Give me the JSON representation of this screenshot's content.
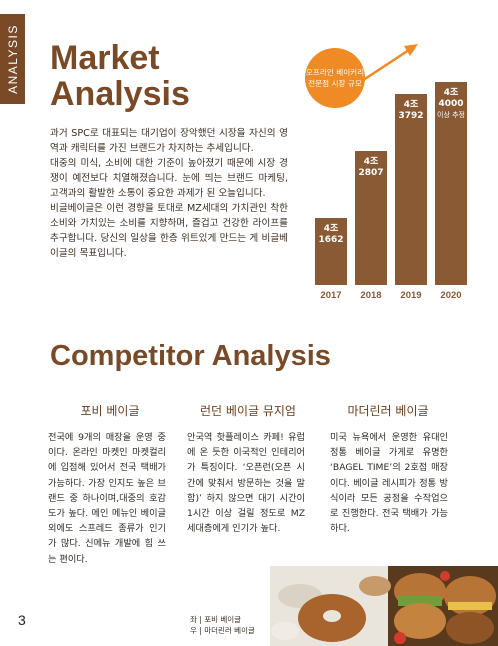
{
  "side_tab": "ANALYSIS",
  "market": {
    "title_line1": "Market",
    "title_line2": "Analysis",
    "paragraphs": [
      "과거 SPC로 대표되는 대기업이 장악했던 시장을 자신의 영역과 캐릭터를 가진 브랜드가 차지하는 추세입니다.",
      "대중의 미식, 소비에 대한 기준이 높아졌기 때문에 시장 경쟁이 예전보다 치열해졌습니다. 눈에 띄는 브랜드 마케팅, 고객과의 활발한 소통이 중요한 과제가 된 오늘입니다.",
      "비글베이글은 이런 경향을 토대로 MZ세대의 가치관인 착한 소비와 가치있는 소비를 지향하며, 즐겁고 건강한 라이프를 추구합니다. 당신의 일상을 한층 위트있게 만드는 게 비글베이글의 목표입니다."
    ]
  },
  "chart_data": {
    "type": "bar",
    "title": "오프라인 베이커리 전문점 시장 규모",
    "categories": [
      "2017",
      "2018",
      "2019",
      "2020"
    ],
    "values": [
      41662,
      42807,
      43792,
      44000
    ],
    "labels": [
      {
        "top": "4조",
        "bottom": "1662",
        "note": ""
      },
      {
        "top": "4조",
        "bottom": "2807",
        "note": ""
      },
      {
        "top": "4조",
        "bottom": "3792",
        "note": ""
      },
      {
        "top": "4조",
        "bottom": "4000",
        "note": "이상 추정"
      }
    ],
    "bar_color": "#8a5a34",
    "accent_color": "#f08a24"
  },
  "competitor": {
    "title": "Competitor Analysis",
    "columns": [
      {
        "name": "포비 베이글",
        "text": "전국에 9개의 매장을 운영 중이다. 온라인 마켓인 마켓컬리에 입점해 있어서 전국 택배가 가능하다. 가장 인지도 높은 브랜드 중 하나이며,대중의 호감도가 높다. 메인 메뉴인 베이글 외에도 스프레드 종류가 인기가 많다. 신메뉴 개발에 힘 쓰는 편이다."
      },
      {
        "name": "런던 베이글 뮤지엄",
        "text": "안국역 핫플레이스 카페! 유럽에 온 듯한 이국적인 인테리어가 특징이다. ‘오픈런(오픈 시간에 맞춰서 방문하는 것을 말함)’ 하지 않으면 대기 시간이 1시간 이상 걸릴 정도로 MZ 세대층에게 인기가 높다."
      },
      {
        "name": "마더린러 베이글",
        "text": "미국 뉴욕에서 운영한 유대인 정통 베이글 가게로 유명한 ‘BAGEL TIME’의 2호점 매장이다. 베이글 레시피가 정통 방식이라 모든 공정을 수작업으로 진행한다. 전국 택배가 가능하다."
      }
    ]
  },
  "caption": {
    "line1": "좌 | 포비 베이글",
    "line2": "우 | 마더린러 베이글"
  },
  "page_number": "3"
}
